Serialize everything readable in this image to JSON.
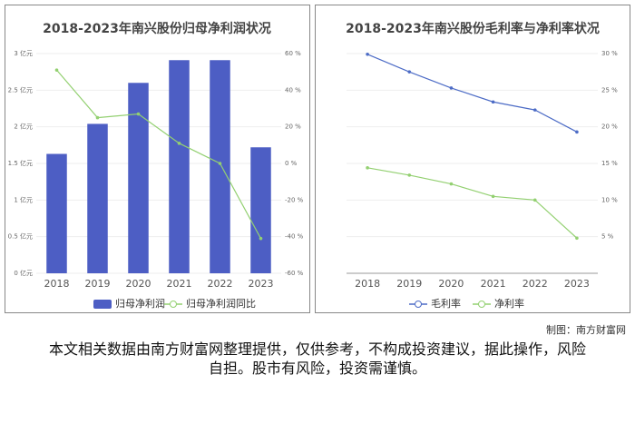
{
  "chart_data": [
    {
      "type": "bar",
      "title": "2018-2023年南兴股份归母净利润状况",
      "categories": [
        "2018",
        "2019",
        "2020",
        "2021",
        "2022",
        "2023"
      ],
      "series": [
        {
          "name": "归母净利润",
          "type": "bar",
          "color": "#4d5ec4",
          "values": [
            1.63,
            2.04,
            2.6,
            2.91,
            2.91,
            1.72
          ]
        },
        {
          "name": "归母净利润同比",
          "type": "line",
          "axis": "y2",
          "color": "#93d071",
          "values": [
            51,
            25,
            27,
            11,
            0,
            -41
          ]
        }
      ],
      "ylim": [
        0,
        3
      ],
      "yticks": [
        {
          "value": 0,
          "label": "0 亿元"
        },
        {
          "value": 0.5,
          "label": "0.5 亿元"
        },
        {
          "value": 1,
          "label": "1 亿元"
        },
        {
          "value": 1.5,
          "label": "1.5 亿元"
        },
        {
          "value": 2,
          "label": "2 亿元"
        },
        {
          "value": 2.5,
          "label": "2.5 亿元"
        },
        {
          "value": 3,
          "label": "3 亿元"
        }
      ],
      "y2lim": [
        -60,
        60
      ],
      "y2ticks": [
        {
          "value": -60,
          "label": "-60 %"
        },
        {
          "value": -40,
          "label": "-40 %"
        },
        {
          "value": -20,
          "label": "-20 %"
        },
        {
          "value": 0,
          "label": "0 %"
        },
        {
          "value": 20,
          "label": "20 %"
        },
        {
          "value": 40,
          "label": "40 %"
        },
        {
          "value": 60,
          "label": "60 %"
        }
      ],
      "grid": true,
      "legend": "bottom"
    },
    {
      "type": "line",
      "title": "2018-2023年南兴股份毛利率与净利率状况",
      "categories": [
        "2018",
        "2019",
        "2020",
        "2021",
        "2022",
        "2023"
      ],
      "series": [
        {
          "name": "毛利率",
          "type": "line",
          "axis": "y2",
          "color": "#4d6cc6",
          "values": [
            29.9,
            27.5,
            25.3,
            23.4,
            22.3,
            19.3
          ]
        },
        {
          "name": "净利率",
          "type": "line",
          "axis": "y2",
          "color": "#93d071",
          "values": [
            14.4,
            13.4,
            12.2,
            10.5,
            10.0,
            4.8
          ]
        }
      ],
      "y2lim": [
        0,
        30
      ],
      "y2ticks": [
        {
          "value": 5,
          "label": "5 %"
        },
        {
          "value": 10,
          "label": "10 %"
        },
        {
          "value": 15,
          "label": "15 %"
        },
        {
          "value": 20,
          "label": "20 %"
        },
        {
          "value": 25,
          "label": "25 %"
        },
        {
          "value": 30,
          "label": "30 %"
        }
      ],
      "grid": true,
      "legend": "bottom"
    }
  ],
  "credit": "制图：南方财富网",
  "disclaimer": "本文相关数据由南方财富网整理提供，仅供参考，不构成投资建议，据此操作，风险自担。股市有风险，投资需谨慎。"
}
